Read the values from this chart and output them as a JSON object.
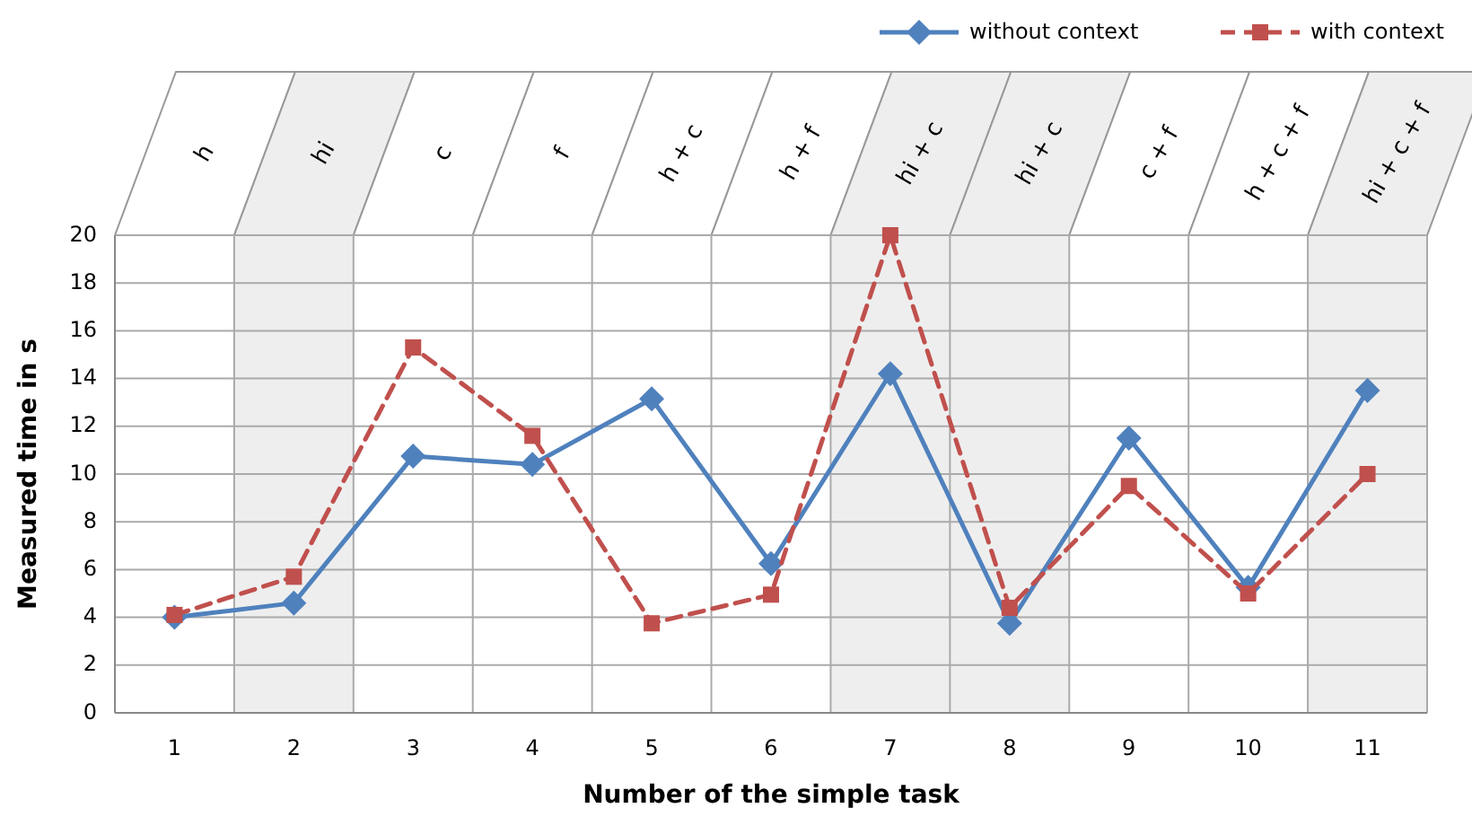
{
  "chart_data": {
    "type": "line",
    "xlabel": "Number of the simple task",
    "ylabel": "Measured time in s",
    "x": [
      1,
      2,
      3,
      4,
      5,
      6,
      7,
      8,
      9,
      10,
      11
    ],
    "xlim": [
      0.5,
      11.5
    ],
    "xticks": [
      1,
      2,
      3,
      4,
      5,
      6,
      7,
      8,
      9,
      10,
      11
    ],
    "ylim": [
      0,
      20
    ],
    "yticks": [
      0,
      2,
      4,
      6,
      8,
      10,
      12,
      14,
      16,
      18,
      20
    ],
    "grid": true,
    "legend": "top right",
    "series": [
      {
        "name": "without context",
        "color": "#4f81bd",
        "marker": "diamond",
        "line_style": "solid",
        "values": [
          4.0,
          4.6,
          10.75,
          10.4,
          13.15,
          6.25,
          14.2,
          3.75,
          11.5,
          5.25,
          13.5
        ]
      },
      {
        "name": "with context",
        "color": "#c0504d",
        "marker": "square",
        "line_style": "dashed",
        "values": [
          4.1,
          5.7,
          15.3,
          11.6,
          3.75,
          4.95,
          20,
          4.4,
          9.5,
          5.0,
          10.0
        ]
      }
    ],
    "bands": [
      {
        "axis": "x",
        "from": 1.5,
        "to": 2.5,
        "color": "#eeeeee"
      },
      {
        "axis": "x",
        "from": 6.5,
        "to": 8.5,
        "color": "#eeeeee"
      },
      {
        "axis": "x",
        "from": 10.5,
        "to": 11.5,
        "color": "#eeeeee"
      }
    ],
    "annotations": [
      "h",
      "hi",
      "c",
      "f",
      "h + c",
      "h + f",
      "hi + c",
      "hi + c",
      "c + f",
      "h + c + f",
      "hi + c + f"
    ]
  }
}
